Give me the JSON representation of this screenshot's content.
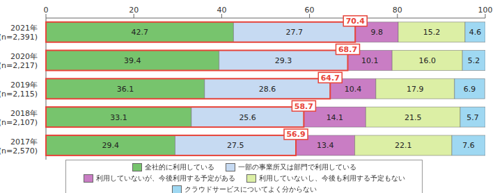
{
  "chart_data": {
    "type": "bar",
    "orientation": "horizontal",
    "stacked": true,
    "data_labels": true,
    "grid": false,
    "legend": "bottom",
    "categories": [
      "2021年 (n=2,391)",
      "2020年 (n=2,217)",
      "2019年 (n=2,115)",
      "2018年 (n=2,107)",
      "2017年 (n=2,570)"
    ],
    "xlim": [
      0,
      100
    ],
    "xticks": [
      0,
      20,
      40,
      60,
      80,
      100
    ],
    "series": [
      {
        "name": "全社的に利用している",
        "color": "#77c46d",
        "values": [
          42.7,
          39.4,
          36.1,
          33.1,
          29.4
        ]
      },
      {
        "name": "一部の事業所又は部門で利用している",
        "color": "#c6daf2",
        "values": [
          27.7,
          29.3,
          28.6,
          25.6,
          27.5
        ]
      },
      {
        "name": "利用していないが、今後利用する予定がある",
        "color": "#c97dc4",
        "values": [
          9.8,
          10.1,
          10.4,
          14.1,
          13.4
        ]
      },
      {
        "name": "利用していないし、今後も利用する予定もない",
        "color": "#dcefa5",
        "values": [
          15.2,
          16.0,
          17.9,
          21.5,
          22.1
        ],
        "value_labels": [
          "15.2",
          "16.0",
          "17.9",
          "21.5",
          "22.1"
        ]
      },
      {
        "name": "クラウドサービスについてよく分からない",
        "color": "#9fd8f2",
        "values": [
          4.6,
          5.2,
          6.9,
          5.7,
          7.6
        ]
      }
    ],
    "totals": [
      70.4,
      68.7,
      64.7,
      58.7,
      56.9
    ]
  }
}
